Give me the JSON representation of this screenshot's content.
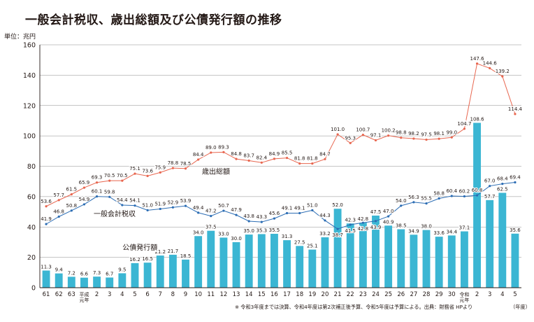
{
  "title": "一般会計税収、歳出総額及び公債発行額の推移",
  "unit": "単位：兆円",
  "footnote": "※ 令和3年度までは決算、令和4年度は第2次補正後予算、令和5年度は予算による。出典：財務省 HPより",
  "footnote_unit": "（年度）",
  "colors": {
    "bonds_bar": "#3bb6d3",
    "spending_line": "#e8664f",
    "tax_line": "#2c6db4",
    "grid": "#8c8c8c",
    "axis": "#231815"
  },
  "chart_data": {
    "type": "bar",
    "ylim": [
      0,
      160
    ],
    "yticks": [
      0,
      20,
      40,
      60,
      80,
      100,
      120,
      140,
      160
    ],
    "grid": true,
    "categories": [
      "61",
      "62",
      "63",
      "平成元年",
      "2",
      "3",
      "4",
      "5",
      "6",
      "7",
      "8",
      "9",
      "10",
      "11",
      "12",
      "13",
      "14",
      "15",
      "16",
      "17",
      "18",
      "19",
      "20",
      "21",
      "22",
      "23",
      "24",
      "25",
      "26",
      "27",
      "28",
      "29",
      "30",
      "令和元年",
      "2",
      "3",
      "4",
      "5"
    ],
    "category_lines": [
      [
        "61"
      ],
      [
        "62"
      ],
      [
        "63"
      ],
      [
        "平成",
        "元年"
      ],
      [
        "2"
      ],
      [
        "3"
      ],
      [
        "4"
      ],
      [
        "5"
      ],
      [
        "6"
      ],
      [
        "7"
      ],
      [
        "8"
      ],
      [
        "9"
      ],
      [
        "10"
      ],
      [
        "11"
      ],
      [
        "12"
      ],
      [
        "13"
      ],
      [
        "14"
      ],
      [
        "15"
      ],
      [
        "16"
      ],
      [
        "17"
      ],
      [
        "18"
      ],
      [
        "19"
      ],
      [
        "20"
      ],
      [
        "21"
      ],
      [
        "22"
      ],
      [
        "23"
      ],
      [
        "24"
      ],
      [
        "25"
      ],
      [
        "26"
      ],
      [
        "27"
      ],
      [
        "28"
      ],
      [
        "29"
      ],
      [
        "30"
      ],
      [
        "令和",
        "元年"
      ],
      [
        "2"
      ],
      [
        "3"
      ],
      [
        "4"
      ],
      [
        "5"
      ]
    ],
    "series": [
      {
        "name": "公債発行額",
        "type": "bar",
        "values": [
          11.3,
          9.4,
          7.2,
          6.6,
          7.3,
          6.7,
          9.5,
          16.2,
          16.5,
          21.2,
          21.7,
          18.5,
          34.0,
          37.5,
          33.0,
          30.0,
          35.0,
          35.3,
          35.5,
          31.3,
          27.5,
          25.1,
          33.2,
          52.0,
          42.3,
          42.8,
          47.5,
          40.9,
          38.5,
          34.9,
          38.0,
          33.6,
          34.4,
          37.1,
          108.6,
          57.7,
          62.5,
          35.6
        ]
      },
      {
        "name": "歳出総額",
        "type": "line",
        "values": [
          53.6,
          57.7,
          61.5,
          65.9,
          69.3,
          70.5,
          70.5,
          75.1,
          73.6,
          75.9,
          78.8,
          78.5,
          84.4,
          89.0,
          89.3,
          84.8,
          83.7,
          82.4,
          84.9,
          85.5,
          81.8,
          81.8,
          84.7,
          101.0,
          95.3,
          100.7,
          97.1,
          100.2,
          98.8,
          98.2,
          97.5,
          98.1,
          99.0,
          104.7,
          147.6,
          144.6,
          139.2,
          114.4
        ]
      },
      {
        "name": "一般会計税収",
        "type": "line",
        "values": [
          41.9,
          46.8,
          50.8,
          54.9,
          60.1,
          59.8,
          54.4,
          54.1,
          51.0,
          51.9,
          52.9,
          53.9,
          49.4,
          47.2,
          50.7,
          47.9,
          43.8,
          43.3,
          45.6,
          49.1,
          49.1,
          51.0,
          44.3,
          38.7,
          41.5,
          42.8,
          43.9,
          47.0,
          54.0,
          56.3,
          55.5,
          58.8,
          60.4,
          60.2,
          60.8,
          67.0,
          68.4,
          69.4
        ]
      }
    ],
    "annotations": [
      "歳出総額",
      "一般会計税収",
      "公債発行額"
    ]
  }
}
